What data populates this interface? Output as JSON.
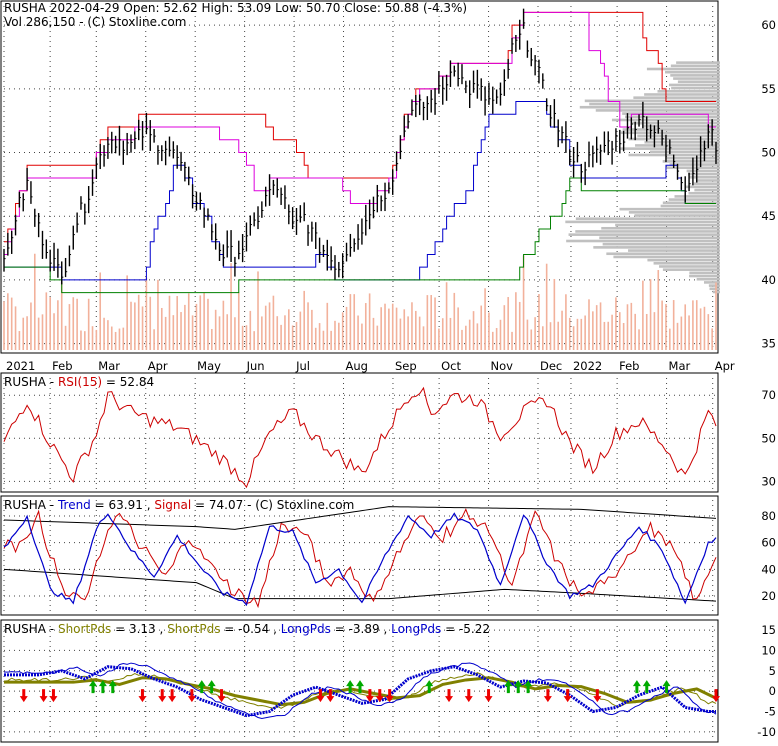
{
  "colors": {
    "price": "#000000",
    "volume_bar": "#f2b19b",
    "profile": "#c0c0c0",
    "trail_red": "#e00000",
    "trail_magenta": "#dd00dd",
    "trail_blue": "#0000cc",
    "trail_green": "#008000",
    "rsi": "#cc0000",
    "trend": "#0000cc",
    "signal": "#cc0000",
    "short_pds": "#808000",
    "long_pds": "#0000cc",
    "up_arrow": "#00aa00",
    "down_arrow": "#ee0000"
  },
  "chart_data": [
    {
      "type": "line",
      "panel": "price",
      "header": {
        "symbol": "RUSHA",
        "date": "2022-04-29",
        "open_label": "Open:",
        "open": "52.62",
        "high_label": "High:",
        "high": "53.09",
        "low_label": "Low:",
        "low": "50.70",
        "close_label": "Close:",
        "close": "50.88",
        "change": "(-4.3%)",
        "vol_label": "Vol",
        "volume": "286,150",
        "credit": "- (C) Stoxline.com"
      },
      "x_tick_labels": [
        "2021",
        "Feb",
        "Mar",
        "Apr",
        "May",
        "Jun",
        "Jul",
        "Aug",
        "Sep",
        "Oct",
        "Nov",
        "Dec",
        "2022",
        "Feb",
        "Mar",
        "Apr"
      ],
      "y_tick_labels": [
        "60",
        "55",
        "50",
        "45",
        "40",
        "35"
      ],
      "y_ticks": [
        60,
        55,
        50,
        45,
        40,
        35
      ],
      "ylim": [
        34.5,
        61.5
      ],
      "price_anchors": [
        [
          0,
          41
        ],
        [
          3,
          45
        ],
        [
          6,
          47.5
        ],
        [
          9,
          44
        ],
        [
          12,
          42
        ],
        [
          15,
          40
        ],
        [
          18,
          44
        ],
        [
          21,
          46
        ],
        [
          24,
          49
        ],
        [
          27,
          51
        ],
        [
          30,
          51
        ],
        [
          33,
          50.5
        ],
        [
          36,
          51.5
        ],
        [
          39,
          51
        ],
        [
          42,
          50.5
        ],
        [
          45,
          49.5
        ],
        [
          48,
          47.5
        ],
        [
          51,
          46
        ],
        [
          54,
          44
        ],
        [
          57,
          42
        ],
        [
          60,
          42
        ],
        [
          63,
          43
        ],
        [
          66,
          45
        ],
        [
          69,
          47
        ],
        [
          72,
          47
        ],
        [
          75,
          44
        ],
        [
          78,
          45
        ],
        [
          81,
          43
        ],
        [
          84,
          42
        ],
        [
          87,
          41
        ],
        [
          90,
          43
        ],
        [
          93,
          44
        ],
        [
          96,
          46
        ],
        [
          99,
          47
        ],
        [
          102,
          49
        ],
        [
          105,
          53
        ],
        [
          108,
          53.5
        ],
        [
          111,
          54
        ],
        [
          114,
          55
        ],
        [
          117,
          57
        ],
        [
          120,
          55
        ],
        [
          123,
          55
        ],
        [
          126,
          54
        ],
        [
          129,
          54
        ],
        [
          132,
          58
        ],
        [
          135,
          59.5
        ],
        [
          138,
          57
        ],
        [
          141,
          54
        ],
        [
          144,
          52
        ],
        [
          147,
          50
        ],
        [
          150,
          49
        ],
        [
          153,
          49.5
        ],
        [
          156,
          50.5
        ],
        [
          159,
          51
        ],
        [
          162,
          51.5
        ],
        [
          165,
          53
        ],
        [
          168,
          52
        ],
        [
          171,
          51
        ],
        [
          174,
          49.5
        ],
        [
          177,
          47.5
        ],
        [
          180,
          49
        ],
        [
          183,
          52
        ],
        [
          186,
          49.5
        ]
      ],
      "n_bars": 186
    },
    {
      "type": "line",
      "panel": "rsi",
      "label": "RSI(15)",
      "value": "52.84",
      "prefix": "RUSHA -",
      "y_tick_labels": [
        "70",
        "50",
        "30"
      ],
      "y_ticks": [
        70,
        50,
        30
      ],
      "ylim": [
        26,
        78
      ],
      "rsi_anchors": [
        [
          0,
          48
        ],
        [
          6,
          68
        ],
        [
          12,
          48
        ],
        [
          18,
          32
        ],
        [
          24,
          52
        ],
        [
          27,
          70
        ],
        [
          33,
          62
        ],
        [
          39,
          58
        ],
        [
          45,
          55
        ],
        [
          51,
          48
        ],
        [
          57,
          40
        ],
        [
          63,
          30
        ],
        [
          69,
          52
        ],
        [
          75,
          62
        ],
        [
          81,
          50
        ],
        [
          87,
          42
        ],
        [
          93,
          34
        ],
        [
          99,
          52
        ],
        [
          105,
          70
        ],
        [
          108,
          74
        ],
        [
          111,
          62
        ],
        [
          117,
          70
        ],
        [
          123,
          68
        ],
        [
          129,
          52
        ],
        [
          135,
          62
        ],
        [
          141,
          68
        ],
        [
          147,
          48
        ],
        [
          153,
          36
        ],
        [
          159,
          52
        ],
        [
          165,
          58
        ],
        [
          171,
          48
        ],
        [
          177,
          32
        ],
        [
          183,
          62
        ],
        [
          186,
          54
        ]
      ]
    },
    {
      "type": "line",
      "panel": "stochastic",
      "prefix": "RUSHA -",
      "series": [
        {
          "name": "Trend",
          "value": "63.91"
        },
        {
          "name": "Signal",
          "value": "74.07"
        }
      ],
      "credit": "- (C) Stoxline.com",
      "y_tick_labels": [
        "80",
        "60",
        "40",
        "20"
      ],
      "y_ticks": [
        80,
        60,
        40,
        20
      ],
      "ylim": [
        8,
        92
      ],
      "trend_anchors": [
        [
          0,
          55
        ],
        [
          6,
          80
        ],
        [
          12,
          25
        ],
        [
          18,
          15
        ],
        [
          24,
          70
        ],
        [
          27,
          83
        ],
        [
          33,
          55
        ],
        [
          39,
          35
        ],
        [
          45,
          65
        ],
        [
          51,
          42
        ],
        [
          57,
          22
        ],
        [
          63,
          15
        ],
        [
          69,
          72
        ],
        [
          75,
          68
        ],
        [
          81,
          30
        ],
        [
          87,
          40
        ],
        [
          93,
          15
        ],
        [
          99,
          50
        ],
        [
          105,
          80
        ],
        [
          111,
          65
        ],
        [
          117,
          80
        ],
        [
          123,
          70
        ],
        [
          129,
          28
        ],
        [
          135,
          82
        ],
        [
          141,
          45
        ],
        [
          147,
          20
        ],
        [
          153,
          28
        ],
        [
          159,
          50
        ],
        [
          165,
          72
        ],
        [
          171,
          55
        ],
        [
          177,
          15
        ],
        [
          183,
          60
        ],
        [
          186,
          64
        ]
      ]
    },
    {
      "type": "line",
      "panel": "momentum",
      "prefix": "RUSHA -",
      "series": [
        {
          "name": "ShortPds",
          "value": "3.13"
        },
        {
          "name": "ShortPds",
          "value": "-0.54"
        },
        {
          "name": "LongPds",
          "value": "-3.89"
        },
        {
          "name": "LongPds",
          "value": "-5.22"
        }
      ],
      "y_tick_labels": [
        "15",
        "10",
        "5",
        "0",
        "-5",
        "-10"
      ],
      "y_ticks": [
        15,
        10,
        5,
        0,
        -5,
        -10
      ],
      "ylim": [
        -12,
        16
      ],
      "long_anchors": [
        [
          0,
          4
        ],
        [
          9,
          4
        ],
        [
          15,
          5
        ],
        [
          21,
          3
        ],
        [
          27,
          6
        ],
        [
          33,
          5.5
        ],
        [
          39,
          3
        ],
        [
          45,
          1
        ],
        [
          51,
          -2
        ],
        [
          57,
          -4
        ],
        [
          63,
          -6
        ],
        [
          69,
          -5
        ],
        [
          75,
          -1
        ],
        [
          81,
          1
        ],
        [
          87,
          -1
        ],
        [
          93,
          -3
        ],
        [
          99,
          -2
        ],
        [
          105,
          3
        ],
        [
          111,
          5
        ],
        [
          117,
          6
        ],
        [
          123,
          4
        ],
        [
          129,
          1
        ],
        [
          135,
          2.5
        ],
        [
          141,
          2
        ],
        [
          147,
          -1
        ],
        [
          153,
          -5
        ],
        [
          159,
          -4
        ],
        [
          165,
          -1
        ],
        [
          171,
          1
        ],
        [
          177,
          -4
        ],
        [
          183,
          -5
        ],
        [
          186,
          -5
        ]
      ],
      "up_arrow_bars": [
        27,
        30,
        33,
        60,
        63,
        105,
        108,
        129,
        153,
        156,
        159,
        192,
        195,
        201
      ],
      "down_arrow_bars": [
        6,
        12,
        15,
        42,
        48,
        51,
        57,
        66,
        96,
        99,
        111,
        114,
        117,
        135,
        141,
        147,
        165,
        171,
        180,
        216
      ]
    }
  ]
}
